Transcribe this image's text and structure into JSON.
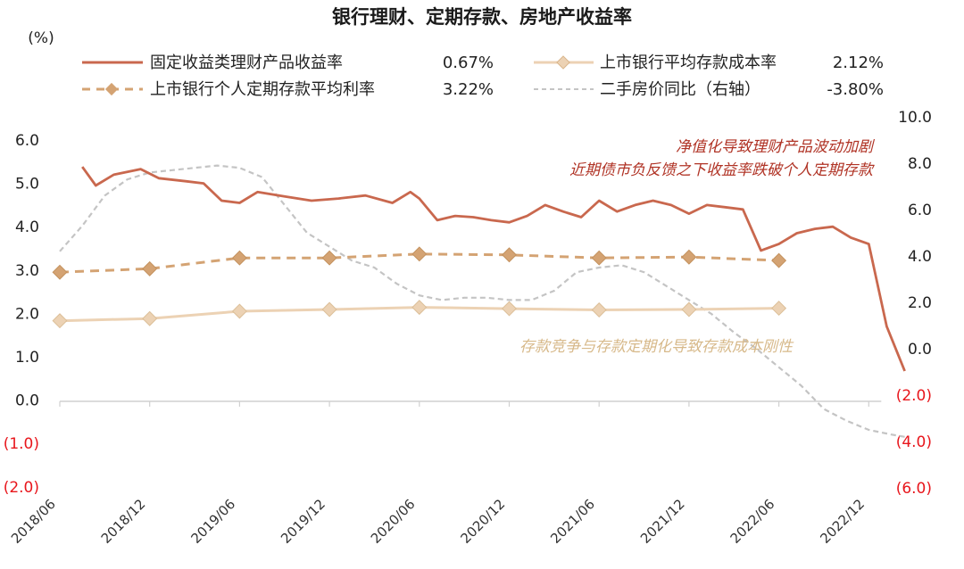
{
  "chart_data": {
    "type": "line",
    "title": "银行理财、定期存款、房地产收益率",
    "ylabel_left": "(%)",
    "x_categories": [
      "2018/06",
      "2018/12",
      "2019/06",
      "2019/12",
      "2020/06",
      "2020/12",
      "2021/06",
      "2021/12",
      "2022/06",
      "2022/12"
    ],
    "y_left": {
      "min": -2,
      "max": 6,
      "ticks": [
        6,
        5,
        4,
        3,
        2,
        1,
        0,
        -1,
        -2
      ],
      "tick_labels": [
        "6.0",
        "5.0",
        "4.0",
        "3.0",
        "2.0",
        "1.0",
        "0.0",
        "(1.0)",
        "(2.0)"
      ]
    },
    "y_right": {
      "min": -6,
      "max": 10,
      "ticks": [
        10,
        8,
        6,
        4,
        2,
        0,
        -2,
        -4,
        -6
      ],
      "tick_labels": [
        "10.0",
        "8.0",
        "6.0",
        "4.0",
        "2.0",
        "0.0",
        "(2.0)",
        "(4.0)",
        "(6.0)"
      ]
    },
    "negative_color": "#e8161c",
    "series": [
      {
        "name": "固定收益类理财产品收益率",
        "latest": "0.67%",
        "axis": "left",
        "color": "#c9684e",
        "style": "solid",
        "x": [
          0.25,
          0.4,
          0.6,
          0.9,
          1.1,
          1.4,
          1.6,
          1.8,
          2.0,
          2.2,
          2.5,
          2.8,
          3.1,
          3.4,
          3.7,
          3.9,
          4.0,
          4.2,
          4.4,
          4.6,
          4.8,
          5.0,
          5.2,
          5.4,
          5.6,
          5.8,
          6.0,
          6.2,
          6.4,
          6.6,
          6.8,
          7.0,
          7.2,
          7.4,
          7.6,
          7.8,
          8.0,
          8.2,
          8.4,
          8.6,
          8.8,
          9.0,
          9.2,
          9.4
        ],
        "y": [
          5.38,
          4.95,
          5.2,
          5.33,
          5.12,
          5.05,
          5.0,
          4.6,
          4.55,
          4.8,
          4.7,
          4.6,
          4.65,
          4.72,
          4.55,
          4.8,
          4.65,
          4.15,
          4.25,
          4.22,
          4.15,
          4.1,
          4.25,
          4.5,
          4.35,
          4.22,
          4.6,
          4.35,
          4.5,
          4.6,
          4.5,
          4.3,
          4.5,
          4.45,
          4.4,
          3.45,
          3.6,
          3.85,
          3.95,
          4.0,
          3.75,
          3.6,
          1.7,
          0.67
        ]
      },
      {
        "name": "上市银行平均存款成本率",
        "latest": "2.12%",
        "axis": "left",
        "color": "#ecd2b4",
        "style": "solid-marker",
        "x": [
          0,
          1,
          2,
          3,
          4,
          5,
          6,
          7,
          8
        ],
        "y": [
          1.83,
          1.88,
          2.05,
          2.09,
          2.14,
          2.11,
          2.08,
          2.09,
          2.12
        ]
      },
      {
        "name": "上市银行个人定期存款平均利率",
        "latest": "3.22%",
        "axis": "left",
        "color": "#d4a373",
        "style": "dashed-marker",
        "x": [
          0,
          1,
          2,
          3,
          4,
          5,
          6,
          7,
          8
        ],
        "y": [
          2.95,
          3.03,
          3.28,
          3.28,
          3.37,
          3.35,
          3.28,
          3.3,
          3.22
        ]
      },
      {
        "name": "二手房价同比（右轴）",
        "latest": "-3.80%",
        "axis": "right",
        "color": "#c4c4c4",
        "style": "dashed",
        "x": [
          0,
          0.25,
          0.5,
          0.75,
          1.0,
          1.25,
          1.5,
          1.75,
          2.0,
          2.25,
          2.5,
          2.75,
          3.0,
          3.25,
          3.5,
          3.75,
          4.0,
          4.25,
          4.5,
          4.75,
          5.0,
          5.25,
          5.5,
          5.75,
          6.0,
          6.25,
          6.5,
          6.75,
          7.0,
          7.25,
          7.5,
          7.75,
          8.0,
          8.25,
          8.5,
          8.75,
          9.0,
          9.25,
          9.4
        ],
        "y": [
          4.2,
          5.3,
          6.6,
          7.3,
          7.6,
          7.7,
          7.8,
          7.9,
          7.8,
          7.4,
          6.2,
          5.0,
          4.4,
          3.8,
          3.5,
          2.8,
          2.3,
          2.1,
          2.2,
          2.2,
          2.1,
          2.1,
          2.5,
          3.3,
          3.5,
          3.6,
          3.3,
          2.7,
          2.1,
          1.5,
          0.7,
          0.0,
          -0.8,
          -1.6,
          -2.6,
          -3.1,
          -3.5,
          -3.7,
          -3.8
        ]
      }
    ],
    "annotations": [
      {
        "lines": [
          "净值化导致理财产品波动加剧",
          "近期债市负反馈之下收益率跌破个人定期存款"
        ],
        "color": "#b03325"
      },
      {
        "lines": [
          "存款竞争与存款定期化导致存款成本刚性"
        ],
        "color": "#d7b98a"
      }
    ]
  }
}
